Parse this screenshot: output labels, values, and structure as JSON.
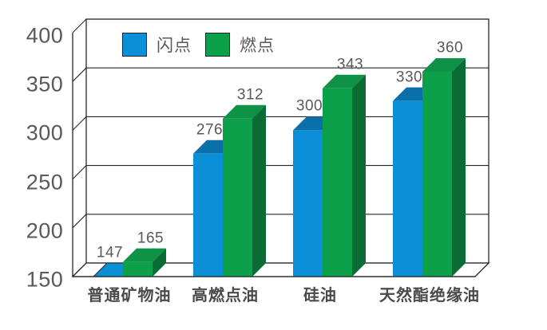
{
  "chart_data": {
    "type": "bar",
    "variant": "3d-column-grouped",
    "categories": [
      "普通矿物油",
      "高燃点油",
      "硅油",
      "天然酯绝缘油"
    ],
    "series": [
      {
        "name": "闪点",
        "values": [
          147,
          276,
          300,
          330
        ],
        "color": "#0b90d8",
        "color_top": "#0b6fa9",
        "color_side": "#085a8a"
      },
      {
        "name": "燃点",
        "values": [
          165,
          312,
          343,
          360
        ],
        "color": "#0da04b",
        "color_top": "#0e9246",
        "color_side": "#0a6c34"
      }
    ],
    "ylim": [
      150,
      400
    ],
    "yticks": [
      150,
      200,
      250,
      300,
      350,
      400
    ],
    "grid": "horizontal",
    "legend_position": "top-inside",
    "value_labels": "above-each-bar",
    "colors": {
      "line": "#262626",
      "tick_text": "#595959",
      "value_text": "#595959",
      "category_text": "#4a4a4a",
      "background": "#ffffff"
    }
  }
}
